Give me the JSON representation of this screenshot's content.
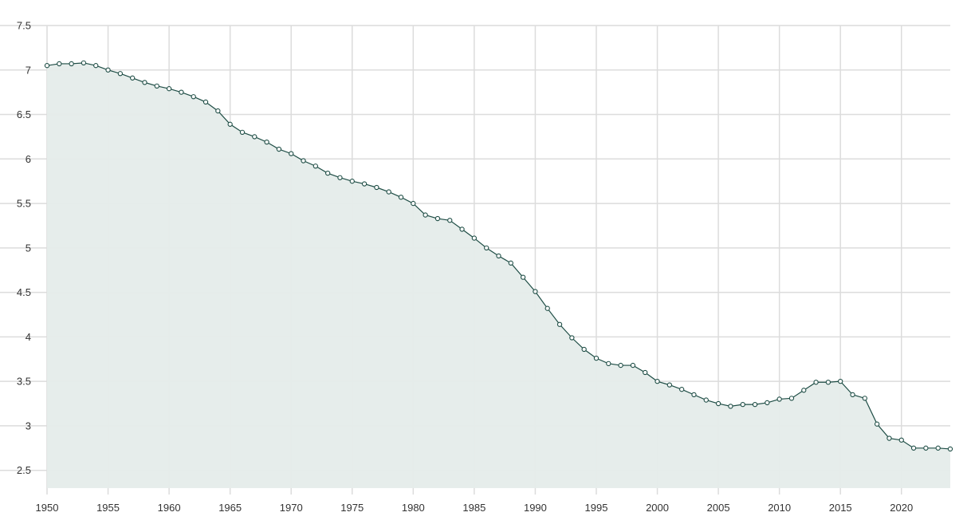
{
  "chart_data": {
    "type": "area",
    "title": "",
    "xlabel": "",
    "ylabel": "",
    "xlim": [
      1950,
      2024
    ],
    "ylim": [
      2.3,
      7.5
    ],
    "grid": true,
    "legend": "none",
    "x_ticks": [
      {
        "value": 1950,
        "label": "1950"
      },
      {
        "value": 1955,
        "label": "1955"
      },
      {
        "value": 1960,
        "label": "1960"
      },
      {
        "value": 1965,
        "label": "1965"
      },
      {
        "value": 1970,
        "label": "1970"
      },
      {
        "value": 1975,
        "label": "1975"
      },
      {
        "value": 1980,
        "label": "1980"
      },
      {
        "value": 1985,
        "label": "1985"
      },
      {
        "value": 1990,
        "label": "1990"
      },
      {
        "value": 1995,
        "label": "1995"
      },
      {
        "value": 2000,
        "label": "2000"
      },
      {
        "value": 2005,
        "label": "2005"
      },
      {
        "value": 2010,
        "label": "2010"
      },
      {
        "value": 2015,
        "label": "2015"
      },
      {
        "value": 2020,
        "label": "2020"
      }
    ],
    "y_ticks": [
      {
        "value": 2.5,
        "label": "2.5"
      },
      {
        "value": 3,
        "label": "3"
      },
      {
        "value": 3.5,
        "label": "3.5"
      },
      {
        "value": 4,
        "label": "4"
      },
      {
        "value": 4.5,
        "label": "4.5"
      },
      {
        "value": 5,
        "label": "5"
      },
      {
        "value": 5.5,
        "label": "5.5"
      },
      {
        "value": 6,
        "label": "6"
      },
      {
        "value": 6.5,
        "label": "6.5"
      },
      {
        "value": 7,
        "label": "7"
      },
      {
        "value": 7.5,
        "label": "7.5"
      }
    ],
    "colors": {
      "line": "#1e4d45",
      "area": "#e5ecea",
      "grid": "#dcdcdc",
      "marker_fill": "#ffffff"
    },
    "series": [
      {
        "x": [
          1950,
          1951,
          1952,
          1953,
          1954,
          1955,
          1956,
          1957,
          1958,
          1959,
          1960,
          1961,
          1962,
          1963,
          1964,
          1965,
          1966,
          1967,
          1968,
          1969,
          1970,
          1971,
          1972,
          1973,
          1974,
          1975,
          1976,
          1977,
          1978,
          1979,
          1980,
          1981,
          1982,
          1983,
          1984,
          1985,
          1986,
          1987,
          1988,
          1989,
          1990,
          1991,
          1992,
          1993,
          1994,
          1995,
          1996,
          1997,
          1998,
          1999,
          2000,
          2001,
          2002,
          2003,
          2004,
          2005,
          2006,
          2007,
          2008,
          2009,
          2010,
          2011,
          2012,
          2013,
          2014,
          2015,
          2016,
          2017,
          2018,
          2019,
          2020,
          2021,
          2022,
          2023,
          2024
        ],
        "y": [
          7.05,
          7.07,
          7.07,
          7.08,
          7.05,
          7.0,
          6.96,
          6.91,
          6.86,
          6.82,
          6.79,
          6.75,
          6.7,
          6.64,
          6.54,
          6.39,
          6.3,
          6.25,
          6.19,
          6.11,
          6.06,
          5.98,
          5.92,
          5.84,
          5.79,
          5.75,
          5.72,
          5.68,
          5.63,
          5.57,
          5.5,
          5.37,
          5.33,
          5.31,
          5.21,
          5.11,
          5.0,
          4.91,
          4.83,
          4.67,
          4.51,
          4.32,
          4.14,
          3.99,
          3.86,
          3.76,
          3.7,
          3.68,
          3.68,
          3.6,
          3.5,
          3.46,
          3.41,
          3.35,
          3.29,
          3.25,
          3.22,
          3.24,
          3.24,
          3.26,
          3.3,
          3.31,
          3.4,
          3.49,
          3.49,
          3.5,
          3.35,
          3.31,
          3.02,
          2.86,
          2.84,
          2.75,
          2.75,
          2.75,
          2.74
        ]
      }
    ]
  }
}
